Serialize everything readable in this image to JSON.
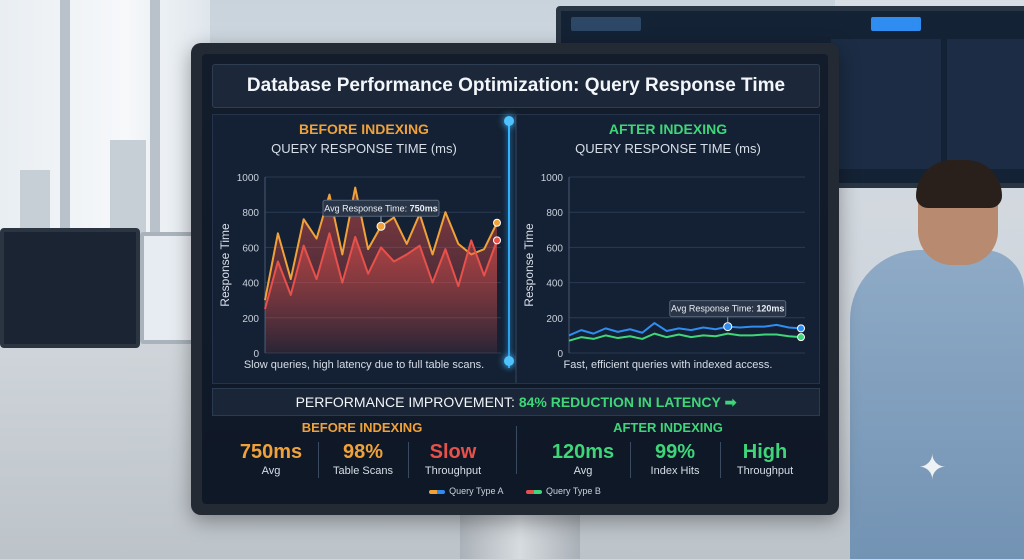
{
  "title": "Database Performance Optimization: Query Response Time",
  "colors": {
    "orange": "#f0a23a",
    "red": "#e8504a",
    "green": "#3fd67a",
    "blue": "#2f8cf0",
    "accent": "#4ec3ff"
  },
  "icons": {
    "arrow": "arrow-right-icon",
    "sparkle": "sparkle-icon"
  },
  "before_panel": {
    "heading": "BEFORE INDEXING",
    "subtitle": "QUERY RESPONSE TIME (ms)",
    "caption": "Slow queries, high latency due to full table scans.",
    "callout_label": "Avg Response Time:",
    "callout_value": "750ms"
  },
  "after_panel": {
    "heading": "AFTER INDEXING",
    "subtitle": "QUERY RESPONSE TIME (ms)",
    "caption": "Fast, efficient queries with indexed access.",
    "callout_label": "Avg Response Time:",
    "callout_value": "120ms"
  },
  "improvement": {
    "label": "PERFORMANCE IMPROVEMENT:",
    "highlight": "84% REDUCTION IN LATENCY",
    "arrow": "➡"
  },
  "stats_before": {
    "heading": "BEFORE INDEXING",
    "items": [
      {
        "value": "750ms",
        "label": "Avg"
      },
      {
        "value": "98%",
        "label": "Table Scans"
      },
      {
        "value": "Slow",
        "label": "Throughput"
      }
    ]
  },
  "stats_after": {
    "heading": "AFTER INDEXING",
    "items": [
      {
        "value": "120ms",
        "label": "Avg"
      },
      {
        "value": "99%",
        "label": "Index Hits"
      },
      {
        "value": "High",
        "label": "Throughput"
      }
    ]
  },
  "legend": [
    "Query Type A",
    "Query Type B"
  ],
  "chart_data": [
    {
      "type": "area",
      "title": "QUERY RESPONSE TIME (ms)",
      "ylabel": "Response Time",
      "ylim": [
        0,
        1000
      ],
      "yticks": [
        0,
        200,
        400,
        600,
        800,
        1000
      ],
      "grid": true,
      "series": [
        {
          "name": "Query Type A",
          "values": [
            300,
            680,
            420,
            760,
            650,
            900,
            560,
            940,
            590,
            720,
            770,
            620,
            790,
            560,
            800,
            620,
            560,
            590,
            740
          ]
        },
        {
          "name": "Query Type B",
          "values": [
            250,
            520,
            330,
            610,
            420,
            680,
            400,
            660,
            450,
            600,
            520,
            560,
            610,
            400,
            590,
            380,
            640,
            440,
            640
          ]
        }
      ]
    },
    {
      "type": "line",
      "title": "QUERY RESPONSE TIME (ms)",
      "ylabel": "Response Time",
      "ylim": [
        0,
        1000
      ],
      "yticks": [
        0,
        200,
        400,
        600,
        800,
        1000
      ],
      "grid": true,
      "series": [
        {
          "name": "Query Type A",
          "values": [
            100,
            130,
            110,
            140,
            120,
            135,
            115,
            170,
            125,
            140,
            130,
            145,
            135,
            150,
            145,
            150,
            150,
            160,
            145,
            140
          ]
        },
        {
          "name": "Query Type B",
          "values": [
            70,
            90,
            80,
            100,
            85,
            95,
            80,
            110,
            90,
            105,
            90,
            100,
            95,
            110,
            100,
            100,
            105,
            105,
            95,
            90
          ]
        }
      ]
    }
  ]
}
